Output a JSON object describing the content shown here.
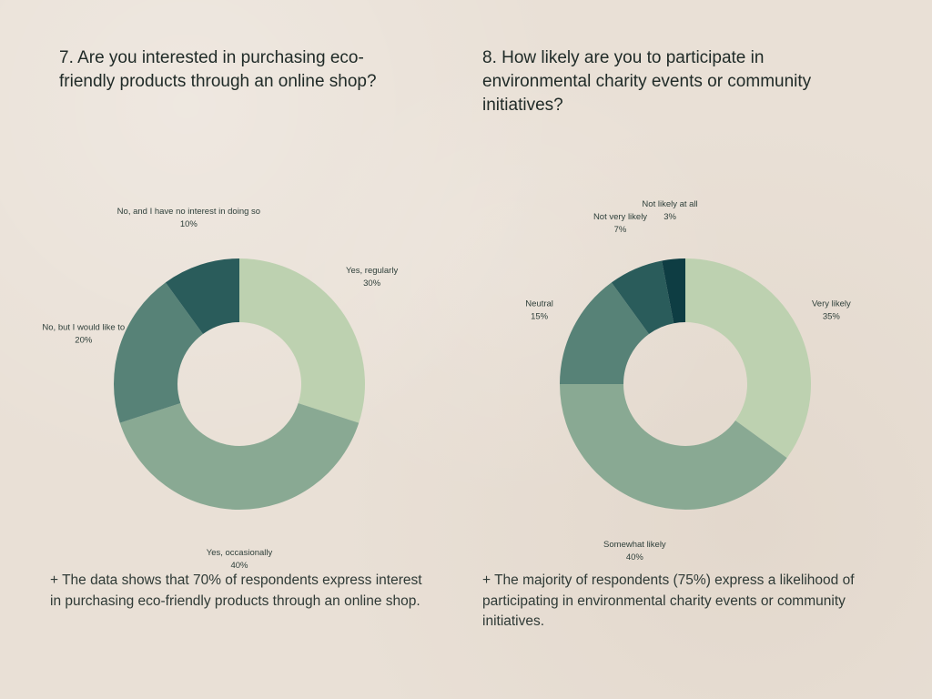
{
  "colors": {
    "background": "#e9e0d6",
    "slice_palette": [
      "#bdd1b0",
      "#89a993",
      "#578277",
      "#2a5c5b",
      "#0e3d43"
    ]
  },
  "chart_data": [
    {
      "type": "pie",
      "question": "7. Are you interested in purchasing eco-friendly products through an online shop?",
      "slices": [
        {
          "label": "Yes, regularly",
          "value": 30,
          "value_label": "30%",
          "color": "#bdd1b0"
        },
        {
          "label": "Yes, occasionally",
          "value": 40,
          "value_label": "40%",
          "color": "#89a993"
        },
        {
          "label": "No, but I would like to",
          "value": 20,
          "value_label": "20%",
          "color": "#578277"
        },
        {
          "label": "No, and I have no interest in doing so",
          "value": 10,
          "value_label": "10%",
          "color": "#2a5c5b"
        }
      ],
      "summary": "+ The data shows that 70% of respondents express interest in purchasing eco-friendly products through an online shop."
    },
    {
      "type": "pie",
      "question": "8. How likely are you to participate in environmental charity events or community initiatives?",
      "slices": [
        {
          "label": "Very likely",
          "value": 35,
          "value_label": "35%",
          "color": "#bdd1b0"
        },
        {
          "label": "Somewhat likely",
          "value": 40,
          "value_label": "40%",
          "color": "#89a993"
        },
        {
          "label": "Neutral",
          "value": 15,
          "value_label": "15%",
          "color": "#578277"
        },
        {
          "label": "Not very likely",
          "value": 7,
          "value_label": "7%",
          "color": "#2a5c5b"
        },
        {
          "label": "Not likely at all",
          "value": 3,
          "value_label": "3%",
          "color": "#0e3d43"
        }
      ],
      "summary": "+ The majority of respondents (75%) express a likelihood of participating in environmental charity events or community initiatives."
    }
  ]
}
